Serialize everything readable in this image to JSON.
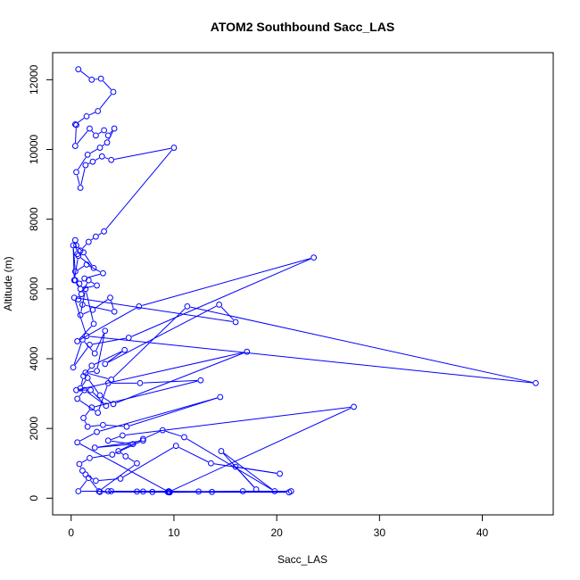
{
  "chart_data": {
    "type": "line",
    "title": "ATOM2 Southbound Sacc_LAS",
    "xlabel": "Sacc_LAS",
    "ylabel": "Altitude (m)",
    "xlim": [
      -1.8,
      46.9
    ],
    "ylim": [
      -478,
      12776
    ],
    "x_ticks": [
      0,
      10,
      20,
      30,
      40
    ],
    "y_ticks": [
      0,
      2000,
      4000,
      6000,
      8000,
      10000,
      12000
    ],
    "series_color": "#0000ff",
    "marker": "open-circle",
    "grid": false,
    "legend": "none",
    "series": [
      {
        "x": [
          0.7,
          2.0,
          2.9,
          4.1,
          2.6,
          1.5,
          0.4,
          0.5,
          0.4,
          1.8,
          2.4,
          3.2,
          3.6,
          4.2,
          3.5,
          2.8,
          1.6,
          0.5,
          0.9,
          1.4,
          2.1,
          3.0,
          3.9,
          10.0,
          3.2,
          2.4,
          1.7,
          0.9,
          0.6,
          0.4,
          0.5,
          1.2,
          2.2,
          0.7,
          0.3,
          0.2,
          0.4,
          1.5,
          3.1,
          1.3,
          0.8,
          0.4,
          0.9,
          2.5,
          1.7,
          1.0,
          0.7,
          1.1,
          4.2,
          3.8,
          2.1,
          0.9,
          1.4,
          2.2,
          0.6,
          6.6,
          23.6,
          5.6,
          1.8,
          0.2,
          1.1,
          2.3,
          3.3,
          2.5,
          1.4,
          3.9,
          11.3,
          45.2,
          1.5,
          0.3,
          16.0,
          14.4,
          3.3,
          5.2,
          2.0,
          1.2,
          0.9,
          1.6,
          2.8,
          4.1,
          17.1,
          0.5,
          1.9,
          3.4,
          1.3,
          0.6,
          2.6,
          3.6,
          6.7,
          12.6,
          2.0,
          1.2,
          1.6,
          3.1,
          5.4,
          14.5,
          2.5,
          0.6,
          9.5,
          27.5,
          5.0,
          3.6,
          6.0,
          2.3,
          7.0,
          4.0,
          1.8,
          0.8,
          1.1,
          1.4,
          2.4,
          4.8,
          10.2,
          13.6,
          20.3,
          16.0,
          18.0,
          14.6,
          19.8,
          11.0,
          8.9,
          7.0,
          4.6,
          5.3,
          6.4,
          2.7,
          1.7,
          0.7,
          3.6,
          7.0,
          9.5,
          9.4,
          9.5,
          21.2,
          3.9,
          12.4,
          6.4,
          2.8,
          9.5,
          7.9,
          16.7,
          21.4,
          13.7,
          9.6
        ],
        "y": [
          12300,
          12000,
          12030,
          11650,
          11100,
          10950,
          10720,
          10700,
          10100,
          10600,
          10400,
          10550,
          10400,
          10600,
          10200,
          10050,
          9850,
          9350,
          8900,
          9550,
          9650,
          9800,
          9700,
          10050,
          7650,
          7500,
          7350,
          7100,
          7000,
          7400,
          7250,
          7050,
          6600,
          6950,
          6250,
          7250,
          6500,
          6700,
          6450,
          6300,
          6150,
          6250,
          6000,
          6100,
          6250,
          5850,
          5700,
          5550,
          5350,
          5750,
          5400,
          5250,
          6000,
          5000,
          4500,
          5500,
          6900,
          4600,
          4400,
          3750,
          4550,
          4150,
          4800,
          3650,
          3600,
          3400,
          5500,
          3300,
          4650,
          5750,
          5050,
          5550,
          3850,
          4250,
          3800,
          3500,
          3150,
          3450,
          2950,
          2700,
          4200,
          3100,
          3100,
          2650,
          3100,
          2850,
          2450,
          3300,
          3300,
          3380,
          2600,
          2300,
          2050,
          2100,
          2050,
          2900,
          1900,
          1600,
          180,
          2620,
          1800,
          1650,
          1550,
          1450,
          1650,
          1250,
          1150,
          980,
          790,
          680,
          500,
          560,
          1500,
          1000,
          700,
          900,
          250,
          1350,
          200,
          1750,
          1950,
          1700,
          1350,
          1200,
          1000,
          200,
          580,
          200,
          200,
          190,
          200,
          180,
          170,
          170,
          200,
          190,
          190,
          180,
          170,
          180,
          200,
          200,
          180,
          170
        ]
      }
    ]
  }
}
